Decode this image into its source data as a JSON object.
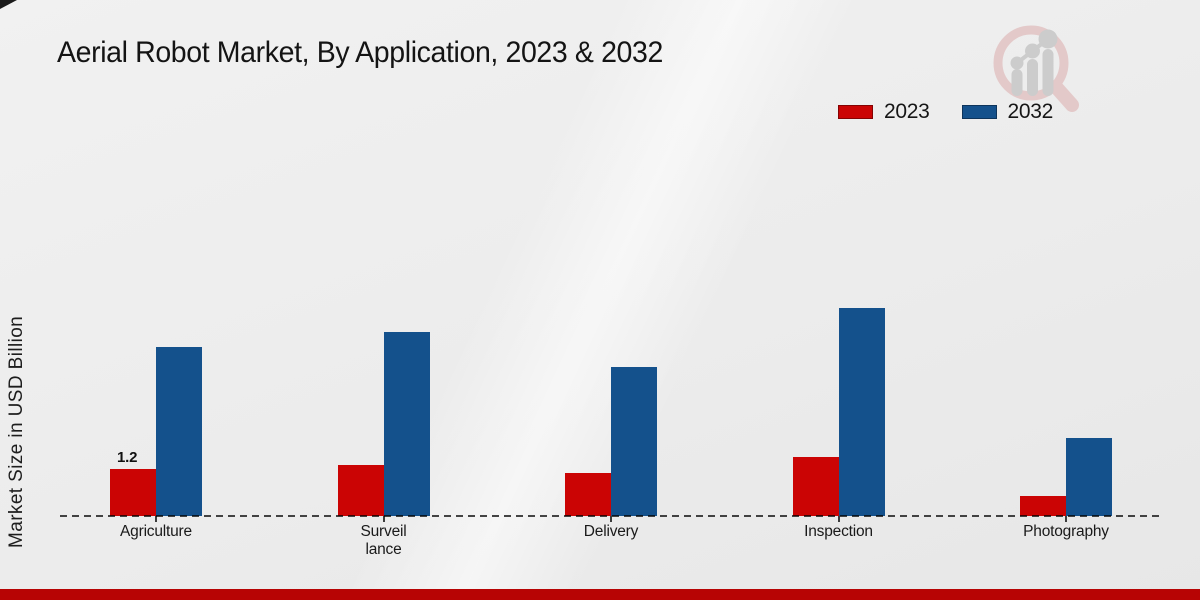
{
  "title": "Aerial Robot Market, By Application, 2023 & 2032",
  "ylabel": "Market Size in USD Billion",
  "legend": [
    {
      "label": "2023",
      "color": "#cb0404"
    },
    {
      "label": "2032",
      "color": "#14518c"
    }
  ],
  "colors": {
    "bar_2023": "#cb0404",
    "bar_2032": "#14518c",
    "footer_strip": "#b70404",
    "axis_line": "#474747",
    "text": "#1a1a1a"
  },
  "chart_data": {
    "type": "bar",
    "title": "Aerial Robot Market, By Application, 2023 & 2032",
    "xlabel": "",
    "ylabel": "Market Size in USD Billion",
    "categories": [
      "Agriculture",
      "Surveillance",
      "Delivery",
      "Inspection",
      "Photography"
    ],
    "category_display_lines": [
      [
        "Agriculture"
      ],
      [
        "Surveil",
        "lance"
      ],
      [
        "Delivery"
      ],
      [
        "Inspection"
      ],
      [
        "Photography"
      ]
    ],
    "series": [
      {
        "name": "2023",
        "color": "#cb0404",
        "values": [
          1.2,
          1.3,
          1.1,
          1.5,
          0.5
        ]
      },
      {
        "name": "2032",
        "color": "#14518c",
        "values": [
          4.3,
          4.7,
          3.8,
          5.3,
          2.0
        ]
      }
    ],
    "data_labels": [
      {
        "series": "2023",
        "category": "Agriculture",
        "text": "1.2"
      }
    ],
    "ylim": [
      0,
      6
    ],
    "grid": false,
    "legend_position": "top-right",
    "axis_baseline": "dashed",
    "y_axis_ticks_visible": false
  },
  "watermark": {
    "name": "magnifier-bar-chart-logo"
  }
}
